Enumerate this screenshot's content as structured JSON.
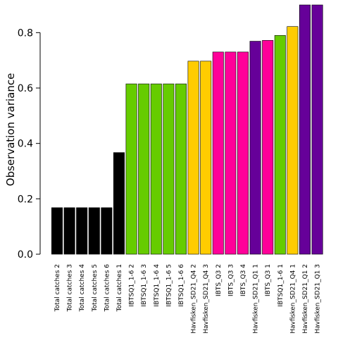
{
  "chart_data": {
    "type": "bar",
    "title": "",
    "xlabel": "",
    "ylabel": "Observation variance",
    "ylim": [
      0,
      0.9
    ],
    "yticks": [
      "0.0",
      "0.2",
      "0.4",
      "0.6",
      "0.8"
    ],
    "grid": false,
    "legend": "none",
    "categories": [
      "Total catches 2",
      "Total catches 3",
      "Total catches 4",
      "Total catches 5",
      "Total catches 6",
      "Total catches 1",
      "IBTSQ1_1-6 2",
      "IBTSQ1_1-6 3",
      "IBTSQ1_1-6 4",
      "IBTSQ1_1-6 5",
      "IBTSQ1_1-6 6",
      "Havfisken_SD21_Q4 2",
      "Havfisken_SD21_Q4 3",
      "IBTS_Q3 2",
      "IBTS_Q3 3",
      "IBTS_Q3 4",
      "Havfisken_SD21_Q1 1",
      "IBTS_Q3 1",
      "IBTSQ1_1-6 1",
      "Havfisken_SD21_Q4 1",
      "Havfisken_SD21_Q1 2",
      "Havfisken_SD21_Q1 3"
    ],
    "values": [
      0.168,
      0.168,
      0.168,
      0.168,
      0.168,
      0.367,
      0.615,
      0.615,
      0.615,
      0.615,
      0.615,
      0.697,
      0.697,
      0.73,
      0.73,
      0.73,
      0.769,
      0.772,
      0.79,
      0.822,
      0.9,
      0.9
    ],
    "colors": [
      "#000000",
      "#000000",
      "#000000",
      "#000000",
      "#000000",
      "#000000",
      "#66cc00",
      "#66cc00",
      "#66cc00",
      "#66cc00",
      "#66cc00",
      "#ffcc00",
      "#ffcc00",
      "#ff0099",
      "#ff0099",
      "#ff0099",
      "#660099",
      "#ff0099",
      "#66cc00",
      "#ffcc00",
      "#660099",
      "#660099"
    ]
  }
}
